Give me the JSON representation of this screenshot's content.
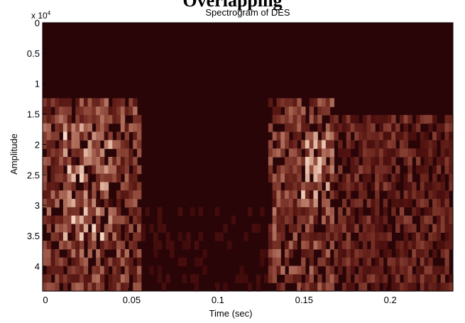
{
  "figure": {
    "cropped_heading": "Overlapping"
  },
  "chart_data": {
    "type": "heatmap",
    "title": "Spectrogram of DES",
    "xlabel": "Time (sec)",
    "ylabel": "Amplitude",
    "y_exponent": "x 10",
    "y_exponent_power": "4",
    "xlim": [
      0,
      0.238
    ],
    "ylim": [
      0,
      44100
    ],
    "y_reversed": true,
    "xticks": [
      0,
      0.05,
      0.1,
      0.15,
      0.2
    ],
    "xtick_labels": [
      "0",
      "0.05",
      "0.1",
      "0.15",
      "0.2"
    ],
    "yticks": [
      0,
      0.5,
      1,
      1.5,
      2,
      2.5,
      3,
      3.5,
      4
    ],
    "ytick_labels": [
      "0",
      "0.5",
      "1",
      "1.5",
      "2",
      "2.5",
      "3",
      "3.5",
      "4"
    ],
    "time_bins": 100,
    "freq_bins": 32,
    "colormap": "pink",
    "background_color": "#2a0508",
    "hot_color": "#f8dcc8",
    "grid": false,
    "segments": [
      {
        "t_start": 0.0,
        "t_end": 0.058,
        "f_start": 1.3,
        "f_end": 4.41,
        "intensity": 0.55
      },
      {
        "t_start": 0.012,
        "t_end": 0.04,
        "f_start": 1.6,
        "f_end": 3.6,
        "intensity": 0.9
      },
      {
        "t_start": 0.13,
        "t_end": 0.17,
        "f_start": 1.3,
        "f_end": 4.41,
        "intensity": 0.55
      },
      {
        "t_start": 0.15,
        "t_end": 0.168,
        "f_start": 1.8,
        "f_end": 3.0,
        "intensity": 0.9
      },
      {
        "t_start": 0.17,
        "t_end": 0.238,
        "f_start": 1.45,
        "f_end": 4.41,
        "intensity": 0.35
      },
      {
        "t_start": 0.058,
        "t_end": 0.13,
        "f_start": 3.0,
        "f_end": 4.41,
        "intensity": 0.08
      }
    ]
  }
}
